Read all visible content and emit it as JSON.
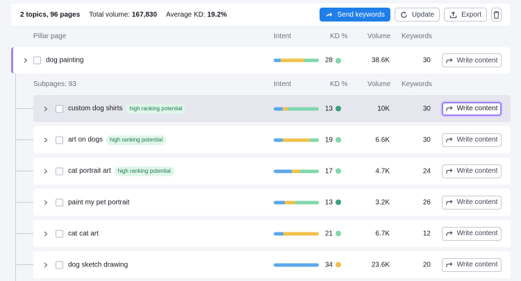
{
  "summary": {
    "topics_pages": "2 topics, 96 pages",
    "total_volume_label": "Total volume:",
    "total_volume_value": "167,830",
    "avg_kd_label": "Average KD:",
    "avg_kd_value": "19.2%"
  },
  "toolbar": {
    "send_keywords": "Send keywords",
    "update": "Update",
    "export": "Export"
  },
  "pillar_header": {
    "pillar_page": "Pillar page",
    "intent": "Intent",
    "kd": "KD %",
    "volume": "Volume",
    "keywords": "Keywords"
  },
  "pillar": {
    "keyword": "dog painting",
    "intent": [
      0.16,
      0.52,
      0.32
    ],
    "kd": "28",
    "kd_color": "#7fd8ac",
    "volume": "38.6K",
    "keywords": "30",
    "action": "Write content"
  },
  "sub_header": {
    "label": "Subpages: 93",
    "intent": "Intent",
    "kd": "KD %",
    "volume": "Volume",
    "keywords": "Keywords"
  },
  "colors": {
    "informational": "#5aa8ea",
    "commercial": "#f0c24b",
    "transactional": "#7fd8ac"
  },
  "rows": [
    {
      "keyword": "custom dog shirts",
      "badge": "high ranking potential",
      "intent": [
        0.2,
        0.1,
        0.7
      ],
      "kd": "13",
      "kd_color": "#3aa077",
      "volume": "10K",
      "keywords": "30",
      "action": "Write content",
      "selected": true
    },
    {
      "keyword": "art on dogs",
      "badge": "high ranking potential",
      "intent": [
        0.2,
        0.6,
        0.2
      ],
      "kd": "19",
      "kd_color": "#7fd8ac",
      "volume": "6.6K",
      "keywords": "30",
      "action": "Write content",
      "selected": false
    },
    {
      "keyword": "cat portrait art",
      "badge": "high ranking potential",
      "intent": [
        0.4,
        0.18,
        0.42
      ],
      "kd": "17",
      "kd_color": "#7fd8ac",
      "volume": "4.7K",
      "keywords": "24",
      "action": "Write content",
      "selected": false
    },
    {
      "keyword": "paint my pet portrait",
      "badge": "",
      "intent": [
        0.25,
        0.22,
        0.53
      ],
      "kd": "13",
      "kd_color": "#3aa077",
      "volume": "3.2K",
      "keywords": "26",
      "action": "Write content",
      "selected": false
    },
    {
      "keyword": "cat cat art",
      "badge": "",
      "intent": [
        0.22,
        0.78,
        0.0
      ],
      "kd": "21",
      "kd_color": "#7fd8ac",
      "volume": "6.7K",
      "keywords": "12",
      "action": "Write content",
      "selected": false
    },
    {
      "keyword": "dog sketch drawing",
      "badge": "",
      "intent": [
        1.0,
        0.0,
        0.0
      ],
      "kd": "34",
      "kd_color": "#f0c24b",
      "volume": "23.6K",
      "keywords": "20",
      "action": "Write content",
      "selected": false
    }
  ]
}
